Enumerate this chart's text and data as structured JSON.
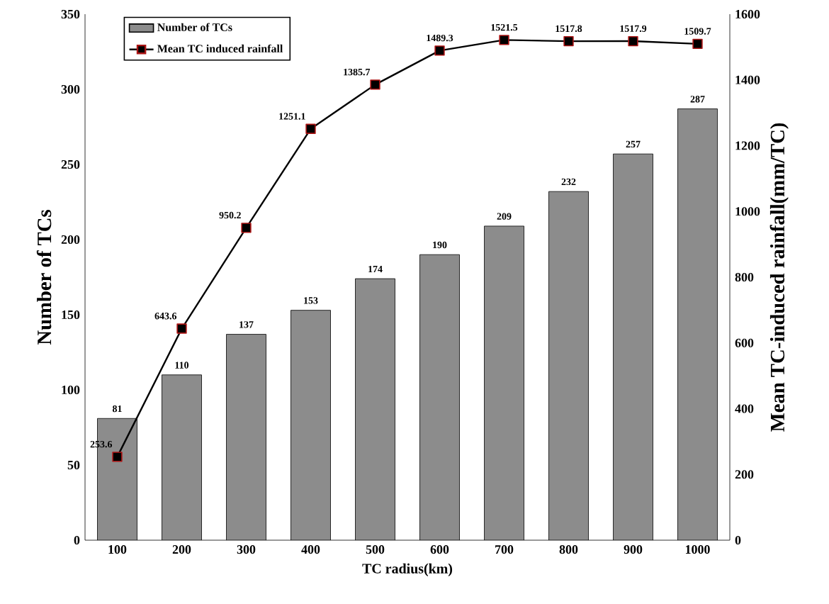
{
  "chart_data": {
    "type": "bar",
    "xlabel": "TC radius(km)",
    "ylabel": "Number of TCs",
    "y2label": "Mean TC-induced rainfall(mm/TC)",
    "categories": [
      "100",
      "200",
      "300",
      "400",
      "500",
      "600",
      "700",
      "800",
      "900",
      "1000"
    ],
    "series": [
      {
        "name": "Number of TCs",
        "color": "#8c8c8c",
        "values": [
          81,
          110,
          137,
          153,
          174,
          190,
          209,
          232,
          257,
          287
        ]
      },
      {
        "name": "Mean TC induced rainfall",
        "type": "line",
        "axis": "y2",
        "color": "#000000",
        "marker": "square",
        "values": [
          253.6,
          643.6,
          950.2,
          1251.1,
          1385.7,
          1489.3,
          1521.5,
          1517.8,
          1517.9,
          1509.7
        ]
      }
    ],
    "ylim": [
      0,
      350
    ],
    "yticks": [
      0,
      50,
      100,
      150,
      200,
      250,
      300,
      350
    ],
    "y2lim": [
      0,
      1600
    ],
    "y2ticks": [
      0,
      200,
      400,
      600,
      800,
      1000,
      1200,
      1400,
      1600
    ],
    "data_labels": true,
    "legend": "top left",
    "grid": false
  }
}
